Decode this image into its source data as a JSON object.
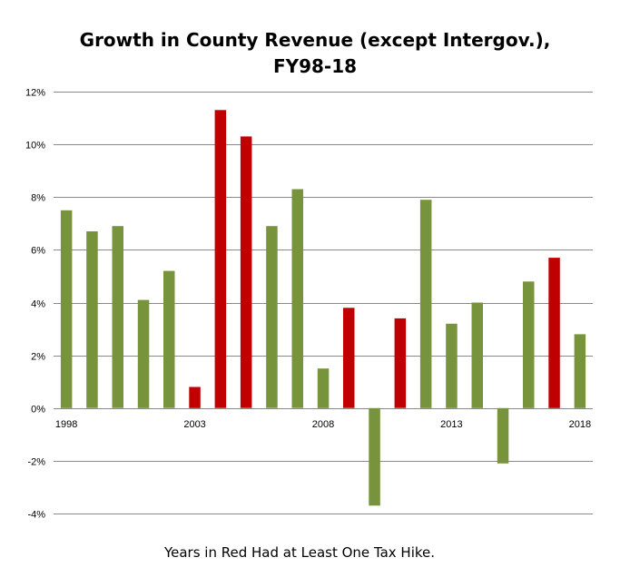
{
  "chart_data": {
    "type": "bar",
    "title_line1": "Growth in County Revenue (except Intergov.),",
    "title_line2": "FY98-18",
    "caption": "Years in Red Had at Least One Tax Hike.",
    "xlabel": "",
    "ylabel": "",
    "ylim": [
      -4,
      12
    ],
    "yticks": [
      12,
      10,
      8,
      6,
      4,
      2,
      0,
      -2,
      -4
    ],
    "ytick_labels": [
      "12%",
      "10%",
      "8%",
      "6%",
      "4%",
      "2%",
      "0%",
      "-2%",
      "-4%"
    ],
    "x_tick_labels": [
      "1998",
      "2003",
      "2008",
      "2013",
      "2018"
    ],
    "x_tick_years": [
      1998,
      2003,
      2008,
      2013,
      2018
    ],
    "grid": true,
    "legend": "none",
    "colors": {
      "no_tax_hike": "#77933c",
      "tax_hike": "#c00000",
      "gridline": "#898989"
    },
    "series": [
      {
        "year": 1998,
        "value": 7.5,
        "tax_hike": false
      },
      {
        "year": 1999,
        "value": 6.7,
        "tax_hike": false
      },
      {
        "year": 2000,
        "value": 6.9,
        "tax_hike": false
      },
      {
        "year": 2001,
        "value": 4.1,
        "tax_hike": false
      },
      {
        "year": 2002,
        "value": 5.2,
        "tax_hike": false
      },
      {
        "year": 2003,
        "value": 0.8,
        "tax_hike": true
      },
      {
        "year": 2004,
        "value": 11.3,
        "tax_hike": true
      },
      {
        "year": 2005,
        "value": 10.3,
        "tax_hike": true
      },
      {
        "year": 2006,
        "value": 6.9,
        "tax_hike": false
      },
      {
        "year": 2007,
        "value": 8.3,
        "tax_hike": false
      },
      {
        "year": 2008,
        "value": 1.5,
        "tax_hike": false
      },
      {
        "year": 2009,
        "value": 3.8,
        "tax_hike": true
      },
      {
        "year": 2010,
        "value": -3.7,
        "tax_hike": false
      },
      {
        "year": 2011,
        "value": 3.4,
        "tax_hike": true
      },
      {
        "year": 2012,
        "value": 7.9,
        "tax_hike": false
      },
      {
        "year": 2013,
        "value": 3.2,
        "tax_hike": false
      },
      {
        "year": 2014,
        "value": 4.0,
        "tax_hike": false
      },
      {
        "year": 2015,
        "value": -2.1,
        "tax_hike": false
      },
      {
        "year": 2016,
        "value": 4.8,
        "tax_hike": false
      },
      {
        "year": 2017,
        "value": 5.7,
        "tax_hike": true
      },
      {
        "year": 2018,
        "value": 2.8,
        "tax_hike": false
      }
    ]
  }
}
